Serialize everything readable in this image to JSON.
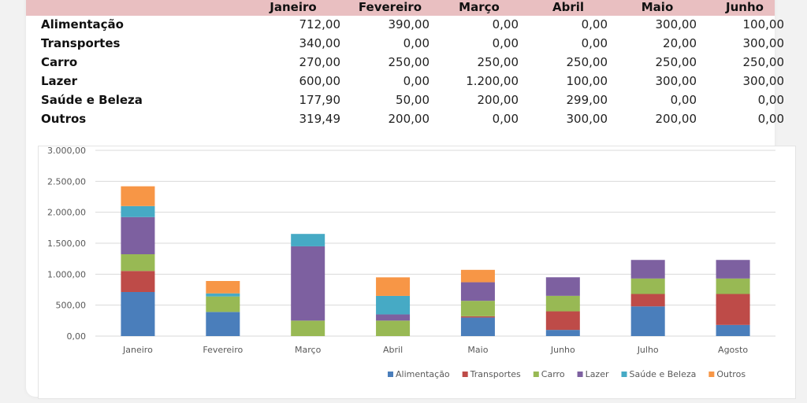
{
  "table": {
    "months": [
      "Janeiro",
      "Fevereiro",
      "Março",
      "Abril",
      "Maio",
      "Junho"
    ],
    "rows": [
      {
        "label": "Alimentação",
        "values": [
          "712,00",
          "390,00",
          "0,00",
          "0,00",
          "300,00",
          "100,00"
        ]
      },
      {
        "label": "Transportes",
        "values": [
          "340,00",
          "0,00",
          "0,00",
          "0,00",
          "20,00",
          "300,00"
        ]
      },
      {
        "label": "Carro",
        "values": [
          "270,00",
          "250,00",
          "250,00",
          "250,00",
          "250,00",
          "250,00"
        ]
      },
      {
        "label": "Lazer",
        "values": [
          "600,00",
          "0,00",
          "1.200,00",
          "100,00",
          "300,00",
          "300,00"
        ]
      },
      {
        "label": "Saúde e Beleza",
        "values": [
          "177,90",
          "50,00",
          "200,00",
          "299,00",
          "0,00",
          "0,00"
        ]
      },
      {
        "label": "Outros",
        "values": [
          "319,49",
          "200,00",
          "0,00",
          "300,00",
          "200,00",
          "0,00"
        ]
      }
    ]
  },
  "chart_data": {
    "type": "bar",
    "stacked": true,
    "categories": [
      "Janeiro",
      "Fevereiro",
      "Março",
      "Abril",
      "Maio",
      "Junho",
      "Julho",
      "Agosto"
    ],
    "ylim": [
      0,
      3000
    ],
    "yticks": [
      "0,00",
      "500,00",
      "1.000,00",
      "1.500,00",
      "2.000,00",
      "2.500,00",
      "3.000,00"
    ],
    "grid": true,
    "legend_position": "bottom-right",
    "series": [
      {
        "name": "Alimentação",
        "color": "#4a7ebb",
        "values": [
          712,
          390,
          0,
          0,
          300,
          100,
          480,
          180
        ]
      },
      {
        "name": "Transportes",
        "color": "#be4b48",
        "values": [
          340,
          0,
          0,
          0,
          20,
          300,
          200,
          500
        ]
      },
      {
        "name": "Carro",
        "color": "#98b954",
        "values": [
          270,
          250,
          250,
          250,
          250,
          250,
          250,
          250
        ]
      },
      {
        "name": "Lazer",
        "color": "#7d60a0",
        "values": [
          600,
          0,
          1200,
          100,
          300,
          300,
          300,
          300
        ]
      },
      {
        "name": "Saúde e Beleza",
        "color": "#46aac5",
        "values": [
          177.9,
          50,
          200,
          299,
          0,
          0,
          0,
          0
        ]
      },
      {
        "name": "Outros",
        "color": "#f79646",
        "values": [
          319.49,
          200,
          0,
          300,
          200,
          0,
          0,
          0
        ]
      }
    ]
  }
}
